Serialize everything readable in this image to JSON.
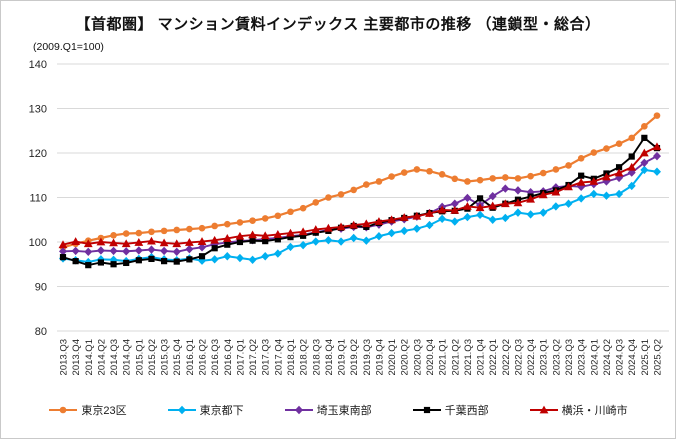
{
  "chart_data": {
    "type": "line",
    "title": "【首都圏】 マンション賃料インデックス 主要都市の推移 （連鎖型・総合）",
    "note": "(2009.Q1=100)",
    "xlabel": "",
    "ylabel": "",
    "ylim": [
      80,
      140
    ],
    "ytick_step": 10,
    "grid": "horizontal",
    "legend_position": "bottom",
    "x_categories": [
      "2013.Q3",
      "2013.Q4",
      "2014.Q1",
      "2014.Q2",
      "2014.Q3",
      "2014.Q4",
      "2015.Q1",
      "2015.Q2",
      "2015.Q3",
      "2015.Q4",
      "2016.Q1",
      "2016.Q2",
      "2016.Q3",
      "2016.Q4",
      "2017.Q1",
      "2017.Q2",
      "2017.Q3",
      "2017.Q4",
      "2018.Q1",
      "2018.Q2",
      "2018.Q3",
      "2018.Q4",
      "2019.Q1",
      "2019.Q2",
      "2019.Q3",
      "2019.Q4",
      "2020.Q1",
      "2020.Q2",
      "2020.Q3",
      "2020.Q4",
      "2021.Q1",
      "2021.Q2",
      "2021.Q3",
      "2021.Q4",
      "2022.Q1",
      "2022.Q2",
      "2022.Q3",
      "2022.Q4",
      "2023.Q1",
      "2023.Q2",
      "2023.Q3",
      "2023.Q4",
      "2024.Q1",
      "2024.Q2",
      "2024.Q3",
      "2024.Q4",
      "2025.Q1",
      "2025.Q2"
    ],
    "series": [
      {
        "name": "東京23区",
        "color": "#ED7D31",
        "marker": "circle",
        "line_width": 2.2,
        "values": [
          98.8,
          99.6,
          100.3,
          100.9,
          101.5,
          101.9,
          102.0,
          102.3,
          102.5,
          102.7,
          102.9,
          103.1,
          103.6,
          104.0,
          104.4,
          104.8,
          105.3,
          105.9,
          106.8,
          107.6,
          108.9,
          110.0,
          110.7,
          111.7,
          112.9,
          113.6,
          114.7,
          115.6,
          116.3,
          115.9,
          115.2,
          114.2,
          113.6,
          113.9,
          114.3,
          114.5,
          114.3,
          114.8,
          115.5,
          116.3,
          117.2,
          118.8,
          120.1,
          121.0,
          122.1,
          123.4,
          126.0,
          128.4
        ]
      },
      {
        "name": "東京都下",
        "color": "#00B0F0",
        "marker": "diamond",
        "line_width": 2.0,
        "values": [
          96.3,
          95.9,
          95.5,
          96.1,
          96.0,
          95.7,
          96.2,
          96.6,
          96.1,
          95.9,
          96.3,
          95.8,
          96.1,
          96.8,
          96.4,
          96.0,
          96.8,
          97.4,
          98.9,
          99.3,
          100.1,
          100.4,
          100.1,
          100.9,
          100.3,
          101.3,
          102.0,
          102.5,
          103.0,
          103.8,
          105.2,
          104.6,
          105.6,
          106.1,
          105.0,
          105.4,
          106.6,
          106.2,
          106.6,
          108.0,
          108.6,
          109.8,
          110.8,
          110.4,
          110.8,
          112.6,
          116.2,
          115.8
        ]
      },
      {
        "name": "埼玉東南部",
        "color": "#7030A0",
        "marker": "diamond",
        "line_width": 1.9,
        "values": [
          97.9,
          98.0,
          97.8,
          98.1,
          98.0,
          97.9,
          98.1,
          98.3,
          98.0,
          97.8,
          98.4,
          98.8,
          99.5,
          99.9,
          100.2,
          100.4,
          100.7,
          100.9,
          101.3,
          101.6,
          102.2,
          102.7,
          103.0,
          103.4,
          103.3,
          103.9,
          104.6,
          105.1,
          105.7,
          106.5,
          107.9,
          108.6,
          109.9,
          108.3,
          110.3,
          112.0,
          111.6,
          111.2,
          111.4,
          112.3,
          112.6,
          112.4,
          113.0,
          113.6,
          114.4,
          115.6,
          117.8,
          119.3
        ]
      },
      {
        "name": "千葉西部",
        "color": "#000000",
        "marker": "square",
        "line_width": 1.9,
        "values": [
          96.6,
          95.7,
          94.8,
          95.4,
          95.0,
          95.3,
          95.9,
          96.2,
          95.7,
          95.6,
          96.1,
          96.8,
          98.6,
          99.4,
          100.0,
          100.3,
          100.2,
          100.6,
          101.1,
          101.4,
          102.1,
          102.5,
          103.2,
          103.6,
          103.4,
          104.3,
          104.9,
          105.4,
          105.9,
          106.5,
          106.9,
          107.0,
          107.5,
          109.8,
          107.7,
          108.6,
          109.5,
          110.2,
          111.0,
          111.6,
          112.8,
          114.9,
          114.2,
          115.4,
          116.8,
          119.2,
          123.4,
          121.1
        ]
      },
      {
        "name": "横浜・川崎市",
        "color": "#C00000",
        "marker": "triangle",
        "line_width": 1.9,
        "values": [
          99.4,
          100.1,
          99.6,
          100.0,
          99.8,
          99.6,
          99.9,
          100.2,
          99.8,
          99.6,
          99.9,
          100.1,
          100.4,
          100.8,
          101.3,
          101.6,
          101.4,
          101.7,
          102.0,
          102.3,
          102.8,
          103.1,
          103.4,
          103.8,
          104.1,
          104.6,
          105.0,
          105.5,
          105.8,
          106.4,
          107.2,
          107.1,
          108.0,
          107.7,
          108.1,
          108.6,
          108.8,
          109.6,
          110.6,
          111.2,
          112.4,
          113.4,
          113.6,
          114.6,
          115.5,
          116.8,
          120.0,
          121.4
        ]
      }
    ],
    "style": {
      "grid_color": "#d9d9d9",
      "tick_label_color": "#262626",
      "x_tick_font_px": 9.5,
      "y_tick_font_px": 11
    }
  }
}
